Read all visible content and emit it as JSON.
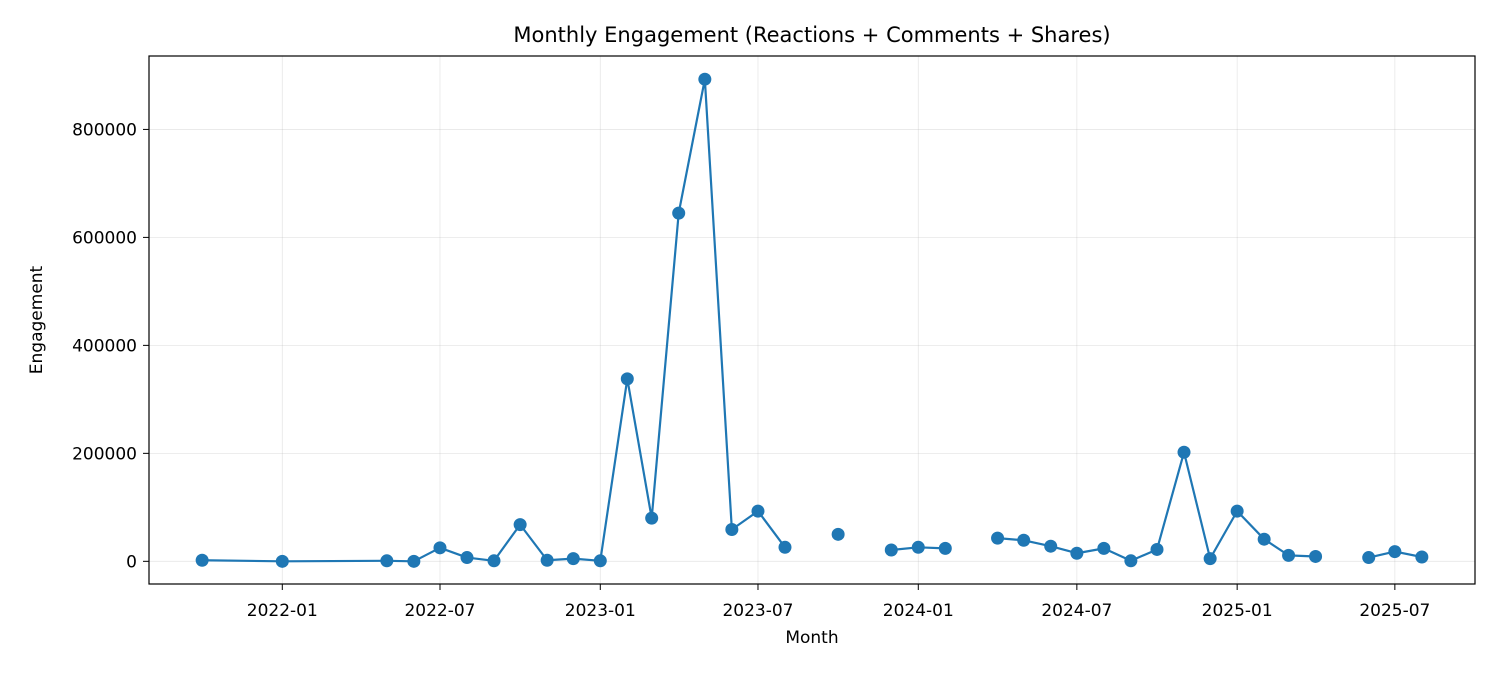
{
  "chart_data": {
    "type": "line",
    "title": "Monthly Engagement (Reactions + Comments + Shares)",
    "xlabel": "Month",
    "ylabel": "Engagement",
    "grid": true,
    "legend": "none",
    "x_axis": "date",
    "xlim": [
      "2021-08-01",
      "2025-10-01"
    ],
    "ylim": [
      -42000,
      936000
    ],
    "x_ticks": [
      "2022-01",
      "2022-07",
      "2023-01",
      "2023-07",
      "2024-01",
      "2024-07",
      "2025-01",
      "2025-07"
    ],
    "y_ticks": [
      0,
      200000,
      400000,
      600000,
      800000
    ],
    "series": [
      {
        "color": "#1f77b4",
        "marker": "circle",
        "points": [
          {
            "x": "2021-10-01",
            "y": 2000
          },
          {
            "x": "2022-01-01",
            "y": 0
          },
          {
            "x": "2022-05-01",
            "y": 1000
          },
          {
            "x": "2022-06-01",
            "y": 0
          },
          {
            "x": "2022-07-01",
            "y": 25000
          },
          {
            "x": "2022-08-01",
            "y": 7000
          },
          {
            "x": "2022-09-01",
            "y": 1000
          },
          {
            "x": "2022-10-01",
            "y": 68000
          },
          {
            "x": "2022-11-01",
            "y": 2000
          },
          {
            "x": "2022-12-01",
            "y": 5000
          },
          {
            "x": "2023-01-01",
            "y": 1000
          },
          {
            "x": "2023-02-01",
            "y": 338000
          },
          {
            "x": "2023-03-01",
            "y": 80000
          },
          {
            "x": "2023-04-01",
            "y": 645000
          },
          {
            "x": "2023-05-01",
            "y": 893000
          },
          {
            "x": "2023-06-01",
            "y": 59000
          },
          {
            "x": "2023-07-01",
            "y": 93000
          },
          {
            "x": "2023-08-01",
            "y": 26000
          },
          {
            "x": "2023-09-01",
            "y": null
          },
          {
            "x": "2023-10-01",
            "y": 50000
          },
          {
            "x": "2023-11-01",
            "y": null
          },
          {
            "x": "2023-12-01",
            "y": 21000
          },
          {
            "x": "2024-01-01",
            "y": 26000
          },
          {
            "x": "2024-02-01",
            "y": 24000
          },
          {
            "x": "2024-03-01",
            "y": null
          },
          {
            "x": "2024-04-01",
            "y": 43000
          },
          {
            "x": "2024-05-01",
            "y": 39000
          },
          {
            "x": "2024-06-01",
            "y": 28000
          },
          {
            "x": "2024-07-01",
            "y": 15000
          },
          {
            "x": "2024-08-01",
            "y": 24000
          },
          {
            "x": "2024-09-01",
            "y": 1000
          },
          {
            "x": "2024-10-01",
            "y": 22000
          },
          {
            "x": "2024-11-01",
            "y": 202000
          },
          {
            "x": "2024-12-01",
            "y": 5000
          },
          {
            "x": "2025-01-01",
            "y": 93000
          },
          {
            "x": "2025-02-01",
            "y": 41000
          },
          {
            "x": "2025-03-01",
            "y": 11000
          },
          {
            "x": "2025-04-01",
            "y": 9000
          },
          {
            "x": "2025-05-01",
            "y": null
          },
          {
            "x": "2025-06-01",
            "y": 7000
          },
          {
            "x": "2025-07-01",
            "y": 18000
          },
          {
            "x": "2025-08-01",
            "y": 8000
          }
        ]
      }
    ]
  }
}
